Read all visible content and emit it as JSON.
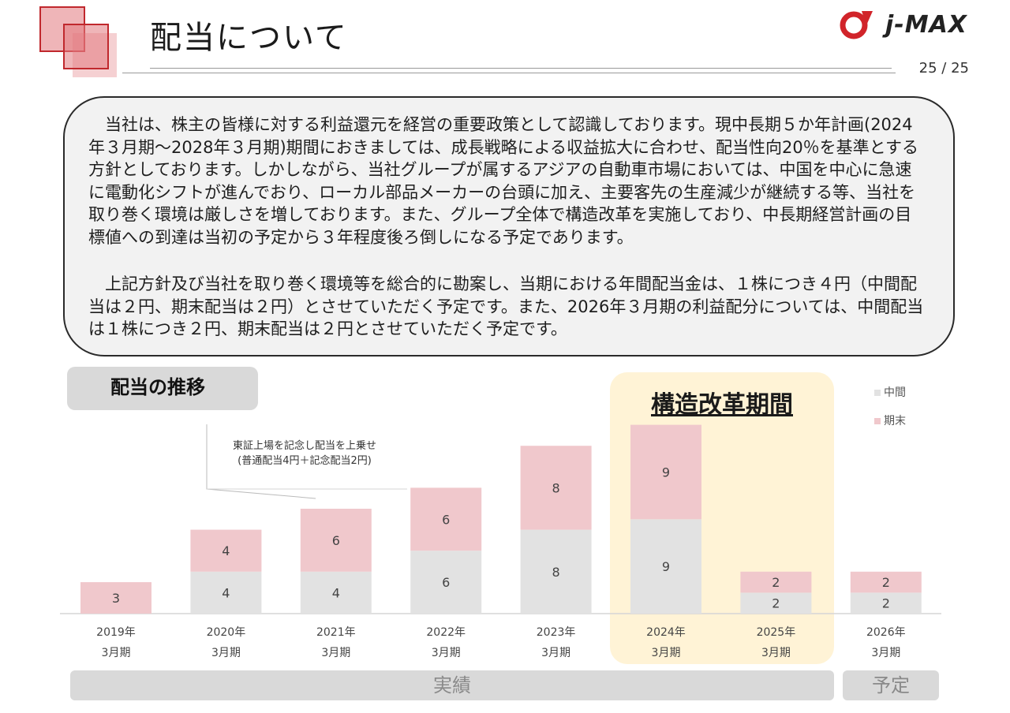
{
  "page": {
    "title": "配当について",
    "page_number": "25 / 25",
    "logo_text": "j-MAX"
  },
  "policy": {
    "paragraph1": "当社は、株主の皆様に対する利益還元を経営の重要政策として認識しております。現中長期５か年計画(2024年３月期～2028年３月期)期間におきましては、成長戦略による収益拡大に合わせ、配当性向20％を基準とする方針としております。しかしながら、当社グループが属するアジアの自動車市場においては、中国を中心に急速に電動化シフトが進んでおり、ローカル部品メーカーの台頭に加え、主要客先の生産減少が継続する等、当社を取り巻く環境は厳しさを増しております。また、グループ全体で構造改革を実施しており、中長期経営計画の目標値への到達は当初の予定から３年程度後ろ倒しになる予定であります。",
    "paragraph2": "上記方針及び当社を取り巻く環境等を総合的に勘案し、当期における年間配当金は、１株につき４円（中間配当は２円、期末配当は２円）とさせていただく予定です。また、2026年３月期の利益配分については、中間配当は１株につき２円、期末配当は２円とさせていただく予定です。"
  },
  "section": {
    "trend_label": "配当の推移",
    "reform_label": "構造改革期間",
    "actual_label": "実績",
    "plan_label": "予定"
  },
  "colors": {
    "interim": "#e2e2e2",
    "year_end": "#f0c8cc",
    "accent_red": "#d1242a",
    "reform_band": "#fff3d6"
  },
  "chart_data": {
    "type": "bar",
    "stacked": true,
    "categories": [
      [
        "2019年",
        "3月期"
      ],
      [
        "2020年",
        "3月期"
      ],
      [
        "2021年",
        "3月期"
      ],
      [
        "2022年",
        "3月期"
      ],
      [
        "2023年",
        "3月期"
      ],
      [
        "2024年",
        "3月期"
      ],
      [
        "2025年",
        "3月期"
      ],
      [
        "2026年",
        "3月期"
      ]
    ],
    "series": [
      {
        "name": "中間",
        "color": "#e2e2e2",
        "values": [
          0,
          4,
          4,
          6,
          8,
          9,
          2,
          2
        ]
      },
      {
        "name": "期末",
        "color": "#f0c8cc",
        "values": [
          3,
          4,
          6,
          6,
          8,
          9,
          2,
          2
        ]
      }
    ],
    "ylim": [
      0,
      18
    ],
    "legend": "top-right",
    "grid": false,
    "annotation": {
      "line1": "東証上場を記念し配当を上乗せ",
      "line2": "(普通配当4円＋記念配当2円)",
      "target_category": 2
    }
  }
}
